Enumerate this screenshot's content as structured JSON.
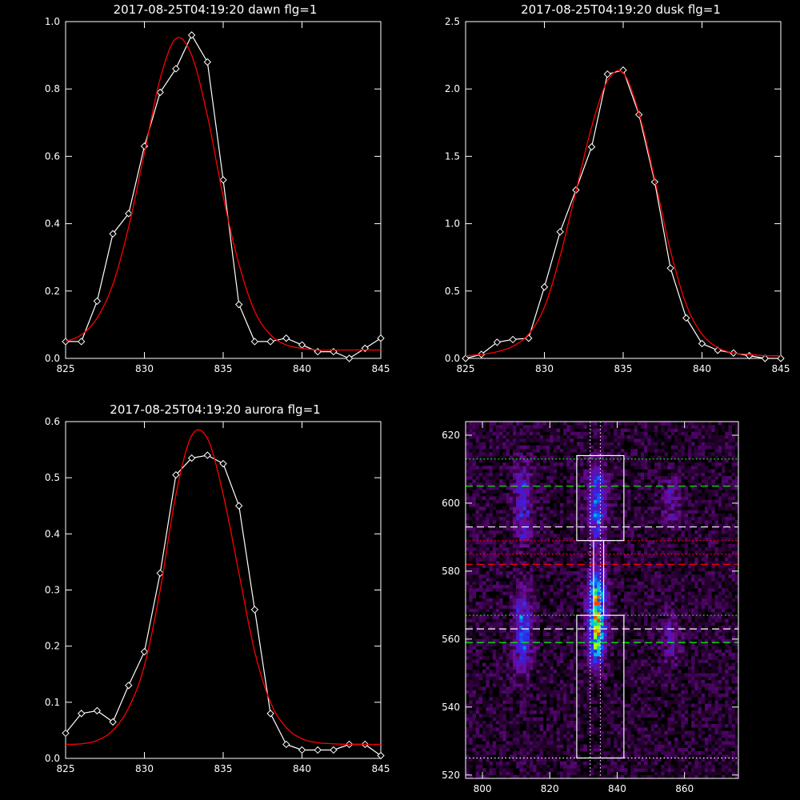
{
  "colors": {
    "background": "#000000",
    "axes": "#ffffff",
    "data_line": "#ffffff",
    "fit_line": "#ff0000",
    "box": "#ffffff",
    "green_lines": "#00ff00",
    "red_lines": "#ff0000"
  },
  "chart_data": [
    {
      "type": "line",
      "title": "2017-08-25T04:19:20 dawn flg=1",
      "xlabel": "",
      "ylabel": "",
      "xlim": [
        825,
        845
      ],
      "ylim": [
        0,
        1.0
      ],
      "xticks": [
        825,
        830,
        835,
        840,
        845
      ],
      "yticks": [
        0.0,
        0.2,
        0.4,
        0.6,
        0.8,
        1.0
      ],
      "ytick_labels": [
        "0.0",
        "0.2",
        "0.4",
        "0.6",
        "0.8",
        "1.0"
      ],
      "series": [
        {
          "role": "data",
          "marker": "diamond",
          "x": [
            825,
            826,
            827,
            828,
            829,
            830,
            831,
            832,
            833,
            834,
            835,
            836,
            837,
            838,
            839,
            840,
            841,
            842,
            843,
            844,
            845
          ],
          "y": [
            0.05,
            0.05,
            0.17,
            0.37,
            0.43,
            0.63,
            0.79,
            0.86,
            0.96,
            0.88,
            0.53,
            0.16,
            0.05,
            0.05,
            0.06,
            0.04,
            0.02,
            0.02,
            0.0,
            0.03,
            0.06
          ]
        },
        {
          "role": "fit",
          "x": [
            825,
            826,
            827,
            828,
            829,
            830,
            831,
            832,
            833,
            834,
            835,
            836,
            837,
            838,
            839,
            840,
            841,
            842,
            843,
            844,
            845
          ],
          "y": [
            0.05,
            0.07,
            0.12,
            0.22,
            0.39,
            0.61,
            0.83,
            0.95,
            0.9,
            0.72,
            0.48,
            0.28,
            0.14,
            0.07,
            0.04,
            0.03,
            0.025,
            0.025,
            0.025,
            0.025,
            0.025
          ]
        }
      ]
    },
    {
      "type": "line",
      "title": "2017-08-25T04:19:20 dusk flg=1",
      "xlabel": "",
      "ylabel": "",
      "xlim": [
        825,
        845
      ],
      "ylim": [
        0,
        2.5
      ],
      "xticks": [
        825,
        830,
        835,
        840,
        845
      ],
      "yticks": [
        0.0,
        0.5,
        1.0,
        1.5,
        2.0,
        2.5
      ],
      "ytick_labels": [
        "0.0",
        "0.5",
        "1.0",
        "1.5",
        "2.0",
        "2.5"
      ],
      "series": [
        {
          "role": "data",
          "marker": "diamond",
          "x": [
            825,
            826,
            827,
            828,
            829,
            830,
            831,
            832,
            833,
            834,
            835,
            836,
            837,
            838,
            839,
            840,
            841,
            842,
            843,
            844,
            845
          ],
          "y": [
            0.0,
            0.03,
            0.12,
            0.14,
            0.15,
            0.53,
            0.94,
            1.25,
            1.57,
            2.11,
            2.14,
            1.81,
            1.31,
            0.67,
            0.3,
            0.11,
            0.06,
            0.04,
            0.02,
            0.0,
            0.0
          ]
        },
        {
          "role": "fit",
          "x": [
            825,
            826,
            827,
            828,
            829,
            830,
            831,
            832,
            833,
            834,
            835,
            836,
            837,
            838,
            839,
            840,
            841,
            842,
            843,
            844,
            845
          ],
          "y": [
            0.02,
            0.03,
            0.05,
            0.09,
            0.18,
            0.38,
            0.76,
            1.24,
            1.72,
            2.06,
            2.12,
            1.82,
            1.33,
            0.8,
            0.4,
            0.18,
            0.08,
            0.04,
            0.03,
            0.02,
            0.02
          ]
        }
      ]
    },
    {
      "type": "line",
      "title": "2017-08-25T04:19:20 aurora flg=1",
      "xlabel": "",
      "ylabel": "",
      "xlim": [
        825,
        845
      ],
      "ylim": [
        0,
        0.6
      ],
      "xticks": [
        825,
        830,
        835,
        840,
        845
      ],
      "yticks": [
        0.0,
        0.1,
        0.2,
        0.3,
        0.4,
        0.5,
        0.6
      ],
      "ytick_labels": [
        "0.0",
        "0.1",
        "0.2",
        "0.3",
        "0.4",
        "0.5",
        "0.6"
      ],
      "series": [
        {
          "role": "data",
          "marker": "diamond",
          "x": [
            825,
            826,
            827,
            828,
            829,
            830,
            831,
            832,
            833,
            834,
            835,
            836,
            837,
            838,
            839,
            840,
            841,
            842,
            843,
            844,
            845
          ],
          "y": [
            0.045,
            0.08,
            0.085,
            0.065,
            0.13,
            0.19,
            0.33,
            0.505,
            0.535,
            0.54,
            0.525,
            0.45,
            0.265,
            0.08,
            0.025,
            0.015,
            0.015,
            0.015,
            0.025,
            0.025,
            0.005
          ]
        },
        {
          "role": "fit",
          "x": [
            825,
            826,
            827,
            828,
            829,
            830,
            831,
            832,
            833,
            834,
            835,
            836,
            837,
            838,
            839,
            840,
            841,
            842,
            843,
            844,
            845
          ],
          "y": [
            0.025,
            0.026,
            0.032,
            0.05,
            0.09,
            0.165,
            0.3,
            0.47,
            0.575,
            0.57,
            0.47,
            0.33,
            0.19,
            0.1,
            0.055,
            0.035,
            0.028,
            0.026,
            0.025,
            0.025,
            0.025
          ]
        }
      ]
    },
    {
      "type": "heatmap",
      "title": "",
      "xlabel": "",
      "ylabel": "",
      "xlim": [
        795,
        876
      ],
      "ylim": [
        519,
        624
      ],
      "xticks": [
        800,
        820,
        840,
        860
      ],
      "yticks": [
        520,
        540,
        560,
        580,
        600,
        620
      ],
      "colorscale": "rainbow on black",
      "blobs": [
        {
          "x": 812,
          "y_min": 588,
          "y_max": 612,
          "intensity": 0.35
        },
        {
          "x": 812,
          "y_min": 550,
          "y_max": 575,
          "intensity": 0.45
        },
        {
          "x": 834,
          "y_min": 588,
          "y_max": 612,
          "intensity": 0.5
        },
        {
          "x": 834,
          "y_min": 553,
          "y_max": 580,
          "intensity": 0.9
        },
        {
          "x": 856,
          "y_min": 593,
          "y_max": 608,
          "intensity": 0.2
        },
        {
          "x": 856,
          "y_min": 553,
          "y_max": 568,
          "intensity": 0.25
        }
      ],
      "boxes": [
        {
          "x": [
            828,
            842
          ],
          "y": [
            589,
            614
          ]
        },
        {
          "x": [
            833,
            836
          ],
          "y": [
            567,
            589
          ]
        },
        {
          "x": [
            828,
            842
          ],
          "y": [
            525,
            567
          ]
        }
      ],
      "hlines": [
        {
          "y": 613,
          "color": "green",
          "style": "dotted"
        },
        {
          "y": 605,
          "color": "green",
          "style": "dashed"
        },
        {
          "y": 593,
          "color": "white",
          "style": "dashed"
        },
        {
          "y": 589,
          "color": "red",
          "style": "dotted"
        },
        {
          "y": 585,
          "color": "red",
          "style": "dotted"
        },
        {
          "y": 582,
          "color": "red",
          "style": "dashed"
        },
        {
          "y": 567,
          "color": "green",
          "style": "dotted"
        },
        {
          "y": 563,
          "color": "white",
          "style": "dashed"
        },
        {
          "y": 559,
          "color": "green",
          "style": "dashed"
        },
        {
          "y": 525,
          "color": "white",
          "style": "dotted"
        }
      ],
      "vlines": [
        {
          "x": 832,
          "color": "white",
          "style": "dotted"
        },
        {
          "x": 835,
          "color": "white",
          "style": "dotted"
        }
      ]
    }
  ]
}
